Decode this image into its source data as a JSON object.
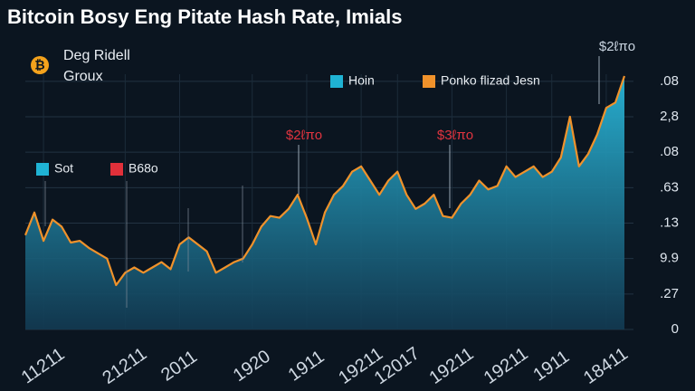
{
  "chart_data": {
    "type": "area",
    "title": "Bitcoin Bosy Eng Pitate Hash Rate, Imials",
    "subtitle": [
      "Deg Ridell",
      "Groux"
    ],
    "legend": [
      {
        "name": "Hoin",
        "color": "#1fb3d4"
      },
      {
        "name": "Ponko flizad Jesn",
        "color": "#f0922b"
      },
      {
        "name": "Sot",
        "color": "#1fb3d4"
      },
      {
        "name": "B68o",
        "color": "#e0303a"
      }
    ],
    "annotations": [
      "$2ℓπo",
      "$2ℓπo",
      "$3ℓπo"
    ],
    "categories": [
      null,
      null,
      "11211",
      null,
      null,
      null,
      null,
      null,
      null,
      null,
      null,
      "21211",
      null,
      null,
      null,
      null,
      null,
      "2011",
      null,
      null,
      null,
      null,
      null,
      null,
      null,
      "1920",
      null,
      null,
      null,
      null,
      null,
      "1911",
      null,
      null,
      null,
      null,
      null,
      "19211",
      null,
      null,
      null,
      "12017",
      null,
      null,
      null,
      null,
      null,
      "19211",
      null,
      null,
      null,
      null,
      null,
      "19211",
      null,
      null,
      null,
      null,
      "1911",
      null,
      null,
      null,
      null,
      null,
      "18411",
      null,
      null
    ],
    "series": [
      {
        "color": "#f0922b",
        "fill": "#1f9fc0",
        "values": [
          2.66,
          3.3,
          2.5,
          3.1,
          2.9,
          2.45,
          2.5,
          2.3,
          2.15,
          2.0,
          1.25,
          1.6,
          1.75,
          1.6,
          1.75,
          1.9,
          1.7,
          2.4,
          2.6,
          2.4,
          2.2,
          1.6,
          1.75,
          1.9,
          2.0,
          2.4,
          2.9,
          3.2,
          3.15,
          3.4,
          3.8,
          3.15,
          2.4,
          3.3,
          3.8,
          4.05,
          4.45,
          4.6,
          4.2,
          3.8,
          4.2,
          4.45,
          3.8,
          3.4,
          3.55,
          3.8,
          3.2,
          3.15,
          3.55,
          3.8,
          4.2,
          3.95,
          4.05,
          4.6,
          4.3,
          4.45,
          4.6,
          4.3,
          4.45,
          4.85,
          6.0,
          4.6,
          4.95,
          5.5,
          6.25,
          6.4,
          7.15
        ]
      }
    ],
    "ylim": [
      0,
      7.2
    ],
    "yticks": [
      0,
      {
        "value": 1,
        "label": ".27"
      },
      {
        "value": 2,
        "label": "9.9"
      },
      {
        "value": 3,
        "label": ".13"
      },
      {
        "value": 4,
        "label": ".63"
      },
      {
        "value": 5,
        "label": ".08"
      },
      {
        "value": 6,
        "label": "2,8"
      },
      {
        "value": 7,
        "label": ".08"
      }
    ],
    "grid": true
  }
}
